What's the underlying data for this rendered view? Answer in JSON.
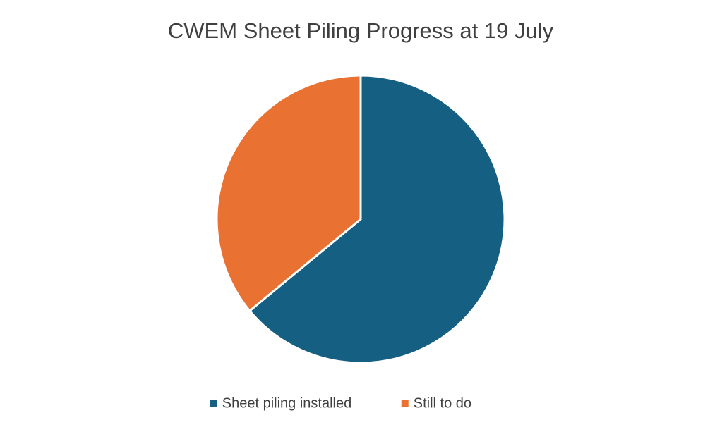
{
  "chart_data": {
    "type": "pie",
    "title": "CWEM Sheet Piling Progress at 19 July",
    "categories": [
      "Sheet piling installed",
      "Still to do"
    ],
    "values": [
      64,
      36
    ],
    "colors": [
      "#156082",
      "#e97132"
    ],
    "legend": "bottom"
  }
}
